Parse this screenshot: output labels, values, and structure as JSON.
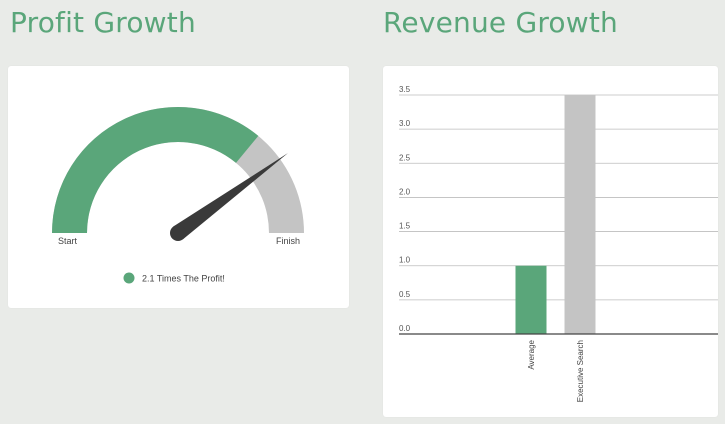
{
  "titles": {
    "profit": "Profit Growth",
    "revenue": "Revenue Growth"
  },
  "colors": {
    "accent": "#5aa67a",
    "rest": "#c4c4c4",
    "needle": "#3a3a3a",
    "text": "#444444"
  },
  "chart_data": [
    {
      "type": "gauge",
      "title": "Profit Growth",
      "value_fraction": 0.8,
      "start_label": "Start",
      "end_label": "Finish",
      "legend": [
        {
          "label": "2.1 Times The Profit!",
          "color": "#5aa67a"
        }
      ]
    },
    {
      "type": "bar",
      "title": "Revenue Growth",
      "categories": [
        "Average",
        "Executive Search"
      ],
      "values": [
        1.0,
        3.5
      ],
      "colors": [
        "#5aa67a",
        "#c4c4c4"
      ],
      "yticks": [
        "0.0",
        "0.5",
        "1.0",
        "1.5",
        "2.0",
        "2.5",
        "3.0",
        "3.5"
      ],
      "ylim": [
        0,
        3.5
      ],
      "grid": true
    }
  ]
}
